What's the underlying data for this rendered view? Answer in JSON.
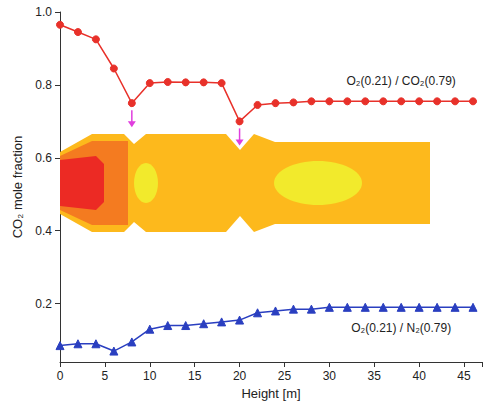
{
  "chart_data": {
    "type": "line",
    "x_label": "Height [m]",
    "y_label": "CO₂ mole fraction",
    "xlim": [
      0,
      47
    ],
    "xticks": [
      0,
      5,
      10,
      15,
      20,
      25,
      30,
      35,
      40,
      45
    ],
    "ylim": [
      0.04,
      1.0
    ],
    "yticks": [
      0.2,
      0.4,
      0.6,
      0.8,
      {
        "value": 1.0,
        "label": "1.0"
      }
    ],
    "grid": false,
    "series": [
      {
        "name": "O₂(0.21) / CO₂(0.79)",
        "color": "#e8312a",
        "marker": "circle",
        "line_style": "solid",
        "x": [
          0,
          2,
          4,
          6,
          8,
          10,
          12,
          14,
          16,
          18,
          20,
          22,
          24,
          26,
          28,
          30,
          32,
          34,
          36,
          38,
          40,
          42,
          44,
          46
        ],
        "values": [
          0.965,
          0.945,
          0.925,
          0.845,
          0.75,
          0.805,
          0.808,
          0.807,
          0.807,
          0.805,
          0.7,
          0.745,
          0.75,
          0.752,
          0.755,
          0.755,
          0.755,
          0.755,
          0.755,
          0.755,
          0.755,
          0.755,
          0.755,
          0.755
        ]
      },
      {
        "name": "O₂(0.21) / N₂(0.79)",
        "color": "#2a3fc0",
        "marker": "triangle",
        "line_style": "solid",
        "x": [
          0,
          2,
          4,
          6,
          8,
          10,
          12,
          14,
          16,
          18,
          20,
          22,
          24,
          26,
          28,
          30,
          32,
          34,
          36,
          38,
          40,
          42,
          44,
          46
        ],
        "values": [
          0.085,
          0.09,
          0.09,
          0.07,
          0.095,
          0.13,
          0.14,
          0.14,
          0.145,
          0.15,
          0.155,
          0.175,
          0.18,
          0.185,
          0.185,
          0.19,
          0.19,
          0.19,
          0.19,
          0.19,
          0.19,
          0.19,
          0.19,
          0.19
        ]
      }
    ]
  }
}
